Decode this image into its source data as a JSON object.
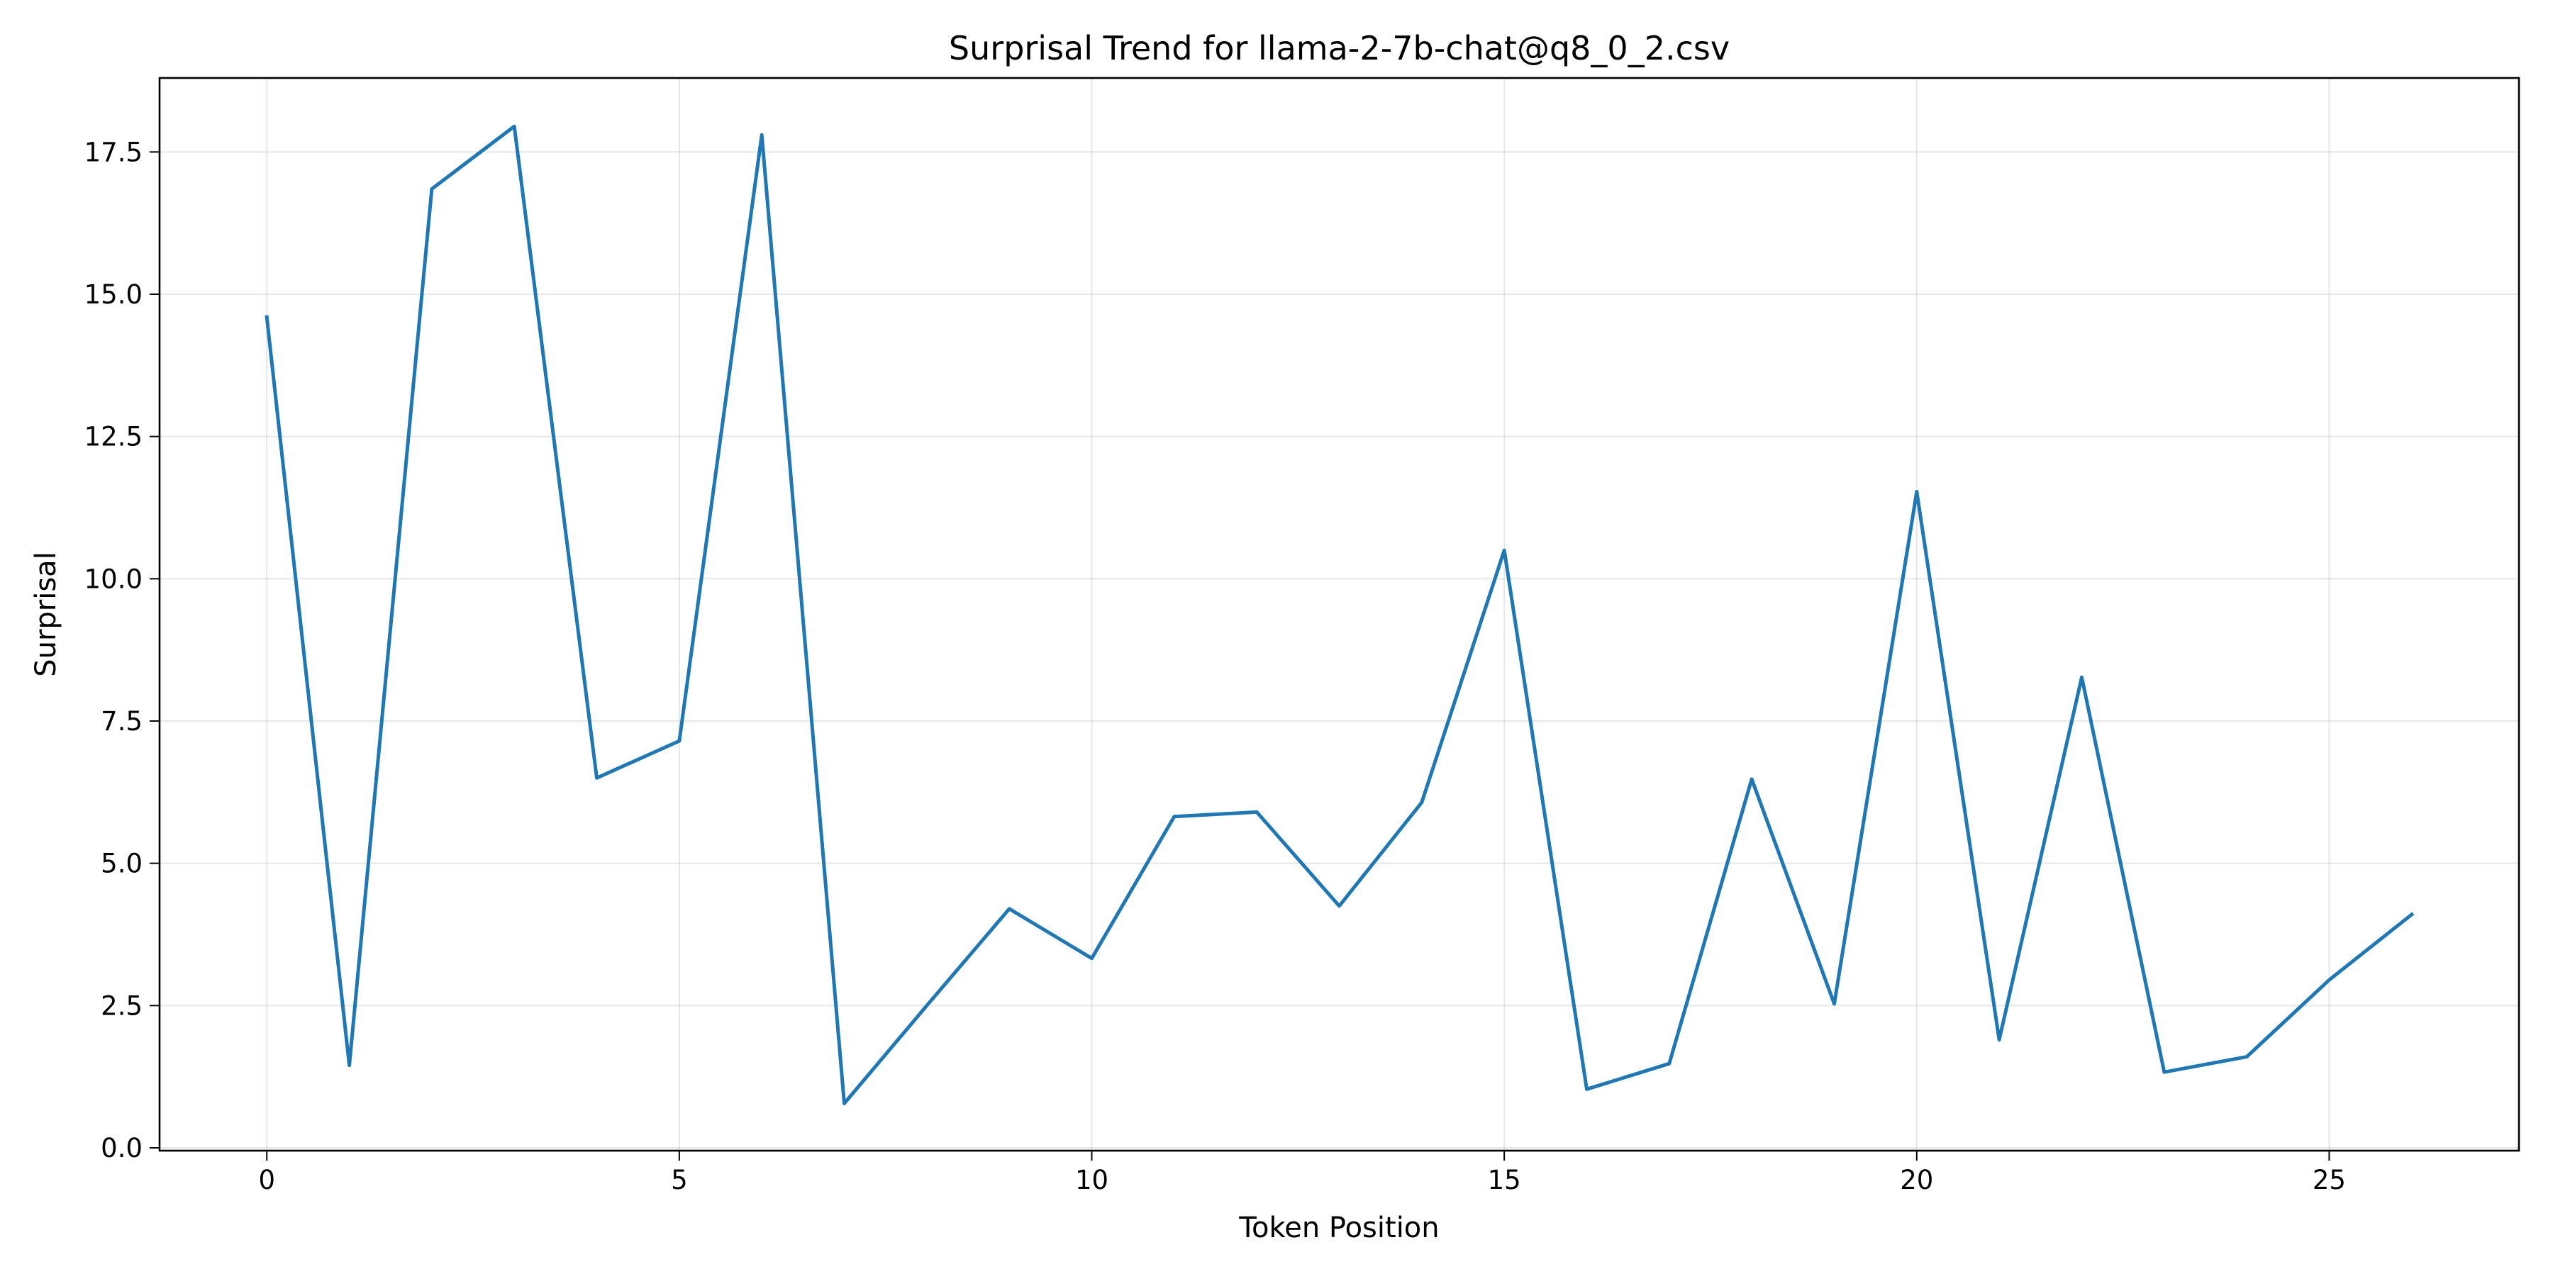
{
  "chart_data": {
    "type": "line",
    "title": "Surprisal Trend for llama-2-7b-chat@q8_0_2.csv",
    "xlabel": "Token Position",
    "ylabel": "Surprisal",
    "xlim": [
      -1.3,
      27.3
    ],
    "ylim": [
      -0.05,
      18.8
    ],
    "x_ticks": [
      0,
      5,
      10,
      15,
      20,
      25
    ],
    "y_ticks": [
      0.0,
      2.5,
      5.0,
      7.5,
      10.0,
      12.5,
      15.0,
      17.5
    ],
    "x_tick_labels": [
      "0",
      "5",
      "10",
      "15",
      "20",
      "25"
    ],
    "y_tick_labels": [
      "0.0",
      "2.5",
      "5.0",
      "7.5",
      "10.0",
      "12.5",
      "15.0",
      "17.5"
    ],
    "grid": true,
    "series": [
      {
        "color": "#1f77b4",
        "x": [
          0,
          1,
          2,
          3,
          4,
          5,
          6,
          7,
          8,
          9,
          10,
          11,
          12,
          13,
          14,
          15,
          16,
          17,
          18,
          19,
          20,
          21,
          22,
          23,
          24,
          25,
          26
        ],
        "values": [
          14.6,
          1.45,
          16.85,
          17.95,
          6.5,
          7.15,
          17.8,
          0.78,
          2.5,
          4.2,
          3.33,
          5.82,
          5.9,
          4.25,
          6.07,
          10.5,
          1.03,
          1.48,
          6.48,
          2.53,
          11.53,
          1.9,
          8.27,
          1.33,
          1.6,
          2.95,
          4.1
        ]
      }
    ]
  }
}
